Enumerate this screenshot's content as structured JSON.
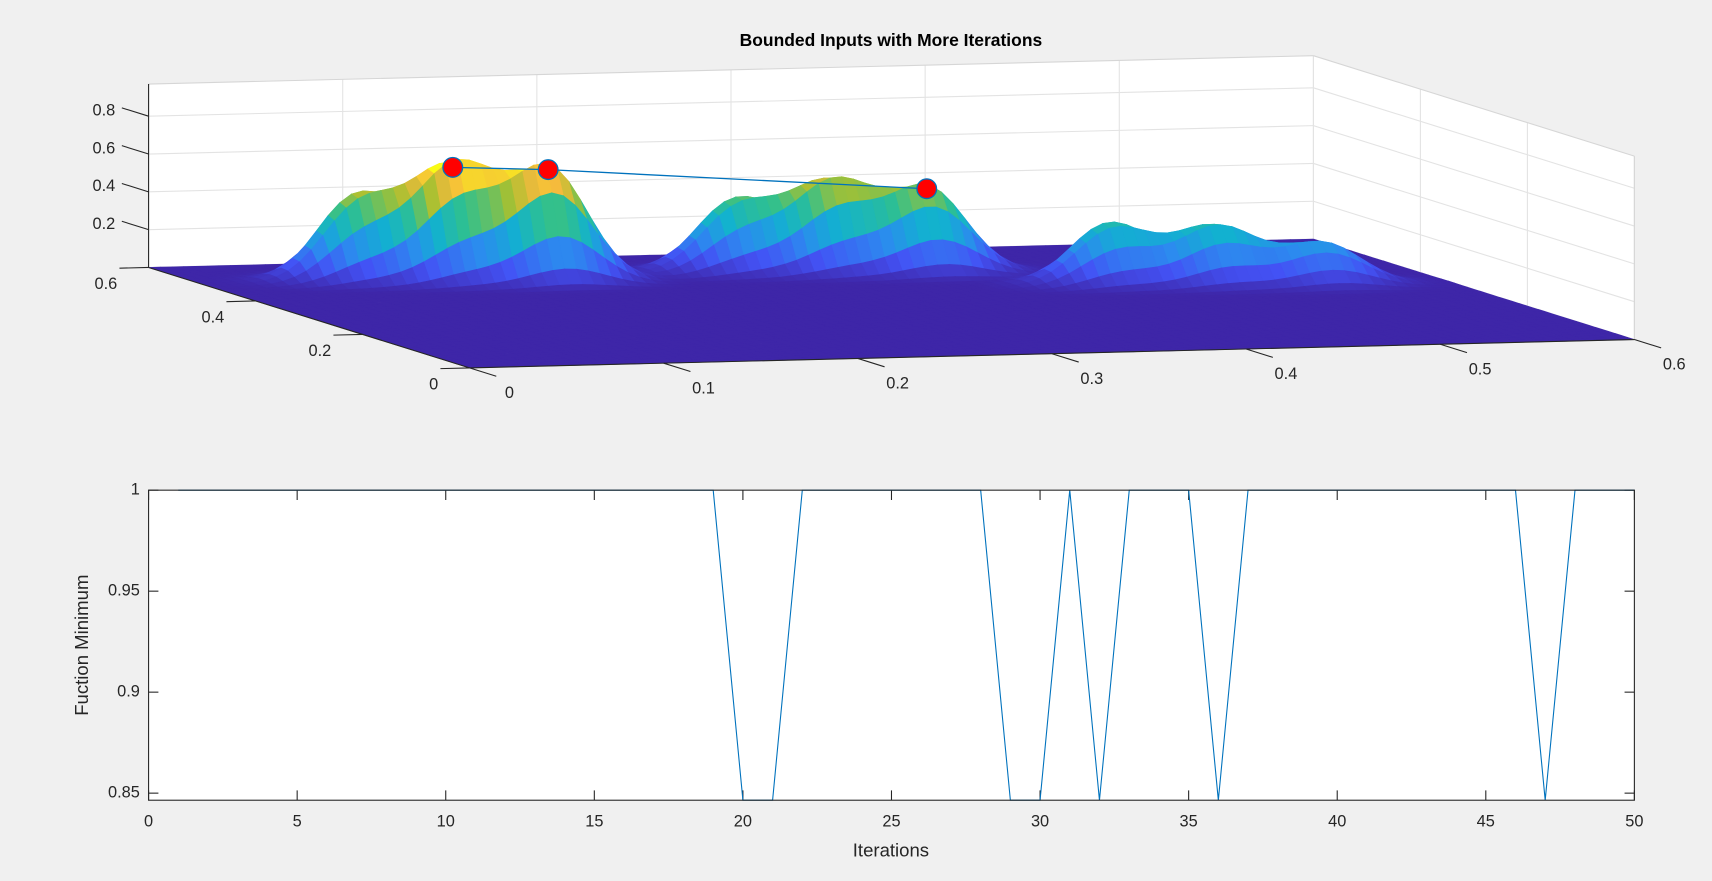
{
  "chart_data": [
    {
      "type": "surface",
      "title": "Bounded Inputs with More Iterations",
      "xlim": [
        0,
        0.6
      ],
      "ylim": [
        0,
        0.6
      ],
      "zlim": [
        0,
        0.97
      ],
      "xticks": [
        0,
        0.1,
        0.2,
        0.3,
        0.4,
        0.5,
        0.6
      ],
      "yticks": [
        0,
        0.2,
        0.4,
        0.6
      ],
      "zticks": [
        0.2,
        0.4,
        0.6,
        0.8
      ],
      "grid": true,
      "surface": {
        "x": [
          0.08,
          0.125,
          0.17,
          0.275,
          0.32,
          0.365,
          0.435,
          0.485,
          0.535
        ],
        "y": [
          0.5,
          0.485,
          0.47,
          0.5,
          0.485,
          0.47,
          0.38,
          0.365,
          0.35
        ],
        "z": [
          0.44,
          0.6,
          0.59,
          0.37,
          0.47,
          0.44,
          0.32,
          0.31,
          0.22
        ]
      },
      "series": [
        {
          "color": "#0072bd",
          "marker_color": "#ff0000",
          "x": [
            0.125,
            0.17,
            0.365
          ],
          "y": [
            0.485,
            0.47,
            0.47
          ],
          "z": [
            0.6,
            0.59,
            0.44
          ]
        }
      ]
    },
    {
      "type": "line",
      "xlabel": "Iterations",
      "ylabel": "Fuction Minimum",
      "xlim": [
        0,
        50
      ],
      "ylim": [
        0.8465,
        1
      ],
      "xticks": [
        0,
        5,
        10,
        15,
        20,
        25,
        30,
        35,
        40,
        45,
        50
      ],
      "yticks": [
        0.85,
        0.9,
        0.95,
        1
      ],
      "x": [
        1,
        2,
        3,
        4,
        5,
        6,
        7,
        8,
        9,
        10,
        11,
        12,
        13,
        14,
        15,
        16,
        17,
        18,
        19,
        20,
        21,
        22,
        23,
        24,
        25,
        26,
        27,
        28,
        29,
        30,
        31,
        32,
        33,
        34,
        35,
        36,
        37,
        38,
        39,
        40,
        41,
        42,
        43,
        44,
        45,
        46,
        47,
        48,
        49,
        50
      ],
      "series": [
        {
          "color": "#0072bd",
          "values": [
            1,
            1,
            1,
            1,
            1,
            1,
            1,
            1,
            1,
            1,
            1,
            1,
            1,
            1,
            1,
            1,
            1,
            1,
            1,
            0.8465,
            0.8465,
            1,
            1,
            1,
            1,
            1,
            1,
            1,
            0.8465,
            0.8465,
            1,
            0.8465,
            1,
            1,
            1,
            0.8465,
            1,
            1,
            1,
            1,
            1,
            1,
            1,
            1,
            1,
            1,
            0.8465,
            1,
            1,
            1
          ]
        }
      ]
    }
  ]
}
